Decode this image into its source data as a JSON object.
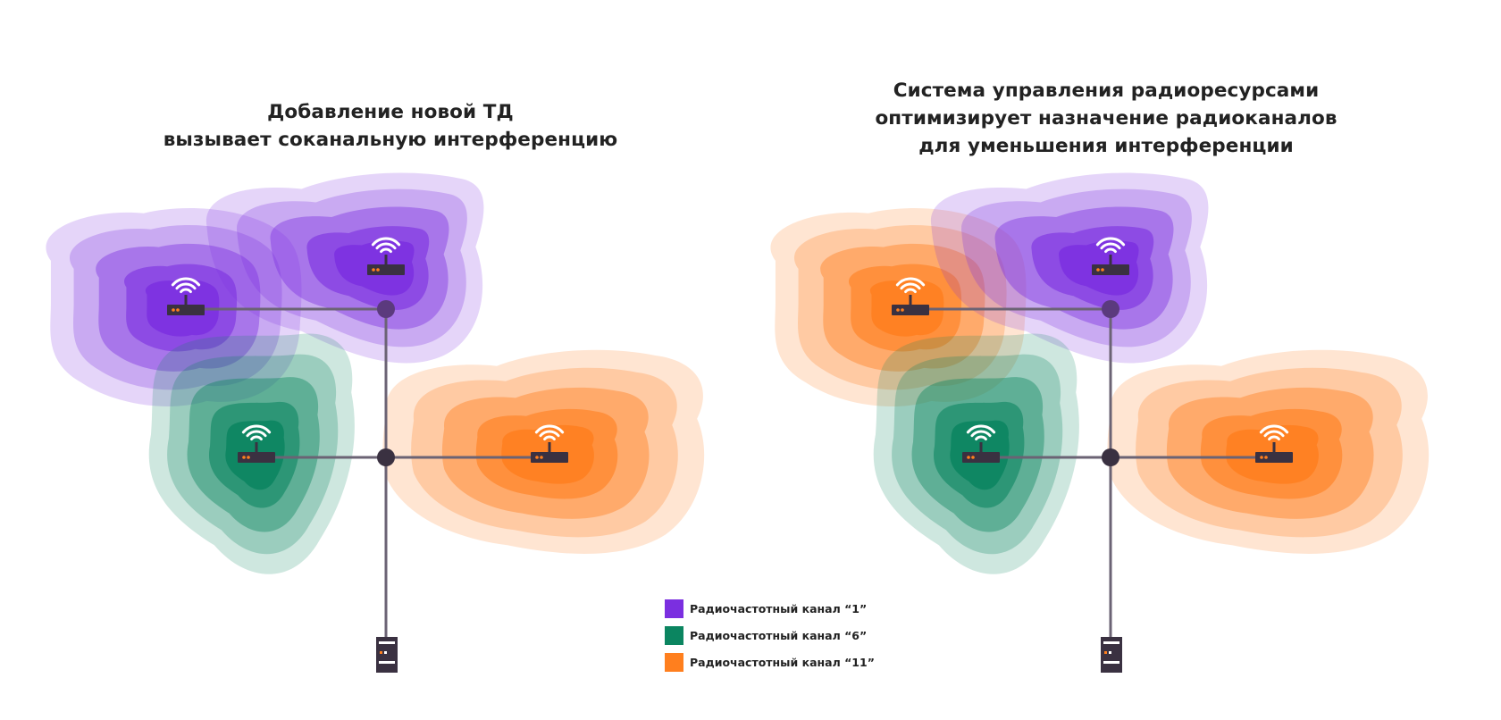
{
  "colors": {
    "ch1": "#7b2fe0",
    "ch6": "#0b8560",
    "ch11": "#ff7f1e",
    "cable": "#6b6374",
    "device": "#3a3141",
    "led": "#ff7f1e",
    "wifi": "#ffffff"
  },
  "panels": {
    "left": {
      "title_line1": "Добавление новой ТД",
      "title_line2": "вызывает соканальную интерференцию",
      "aps": [
        {
          "id": "top-left",
          "channel": "ch1"
        },
        {
          "id": "top-right",
          "channel": "ch1"
        },
        {
          "id": "bottom-left",
          "channel": "ch6"
        },
        {
          "id": "bottom-right",
          "channel": "ch11"
        }
      ]
    },
    "right": {
      "title_line1": "Система управления радиоресурсами",
      "title_line2": "оптимизирует назначение радиоканалов",
      "title_line3": "для уменьшения интерференции",
      "aps": [
        {
          "id": "top-left",
          "channel": "ch11"
        },
        {
          "id": "top-right",
          "channel": "ch1"
        },
        {
          "id": "bottom-left",
          "channel": "ch6"
        },
        {
          "id": "bottom-right",
          "channel": "ch11"
        }
      ]
    }
  },
  "legend": {
    "items": [
      {
        "channel": "ch1",
        "label": "Радиочастотный канал “1”"
      },
      {
        "channel": "ch6",
        "label": "Радиочастотный канал “6”"
      },
      {
        "channel": "ch11",
        "label": "Радиочастотный канал “11”"
      }
    ]
  }
}
